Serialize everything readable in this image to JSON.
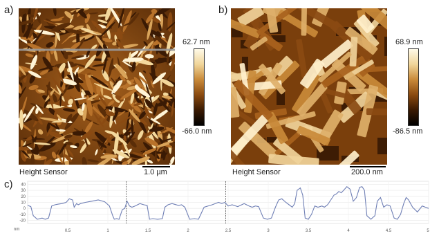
{
  "panels": {
    "a": {
      "letter": "a)",
      "caption": "Height Sensor",
      "scale": "1.0 µm",
      "colorbar_max": "62.7 nm",
      "colorbar_min": "-66.0 nm"
    },
    "b": {
      "letter": "b)",
      "caption": "Height Sensor",
      "scale": "200.0 nm",
      "colorbar_max": "68.9 nm",
      "colorbar_min": "-86.5 nm"
    },
    "c": {
      "letter": "c)",
      "y_unit": "nm"
    }
  },
  "colors": {
    "profile_line": "#6f7fb5",
    "scan_line": "#9a9a9a",
    "afm_dark": "#1a0a00",
    "afm_mid": "#9b5a17",
    "afm_light": "#fff6d8"
  },
  "chart_data": {
    "type": "line",
    "xlabel": "",
    "ylabel": "nm",
    "xlim": [
      0,
      5
    ],
    "ylim": [
      -25,
      45
    ],
    "x_ticks": [
      "0.5",
      "1",
      "1.5",
      "2",
      "2.5",
      "3",
      "3.5",
      "4",
      "4.5",
      "5"
    ],
    "y_ticks": [
      "40",
      "30",
      "20",
      "10",
      "0",
      "-10",
      "-20"
    ],
    "markers_x": [
      1.23,
      2.47
    ],
    "series": [
      {
        "x": [
          0,
          0.04,
          0.07,
          0.12,
          0.18,
          0.22,
          0.26,
          0.3,
          0.34,
          0.38,
          0.43,
          0.48,
          0.52,
          0.56,
          0.58,
          0.61,
          0.63,
          0.66,
          0.72,
          0.8,
          0.88,
          0.96,
          1.02,
          1.06,
          1.08,
          1.11,
          1.14,
          1.18,
          1.21,
          1.24,
          1.27,
          1.3,
          1.34,
          1.4,
          1.45,
          1.49,
          1.52,
          1.56,
          1.62,
          1.68,
          1.71,
          1.75,
          1.8,
          1.88,
          1.92,
          1.96,
          2.02,
          2.08,
          2.13,
          2.2,
          2.3,
          2.38,
          2.42,
          2.46,
          2.5,
          2.55,
          2.62,
          2.7,
          2.76,
          2.8,
          2.84,
          2.88,
          2.94,
          2.99,
          3.04,
          3.09,
          3.13,
          3.17,
          3.22,
          3.26,
          3.3,
          3.33,
          3.36,
          3.4,
          3.43,
          3.46,
          3.5,
          3.54,
          3.58,
          3.62,
          3.67,
          3.7,
          3.74,
          3.78,
          3.82,
          3.85,
          3.88,
          3.91,
          3.94,
          3.98,
          4.02,
          4.06,
          4.1,
          4.14,
          4.17,
          4.2,
          4.23,
          4.28,
          4.33,
          4.36,
          4.4,
          4.44,
          4.48,
          4.52,
          4.57,
          4.61,
          4.65,
          4.69,
          4.72,
          4.75,
          4.8,
          4.86,
          4.92,
          4.96,
          5.0
        ],
        "y": [
          5,
          3,
          -12,
          -18,
          -16,
          -18,
          -16,
          4,
          6,
          7,
          8,
          10,
          16,
          14,
          2,
          8,
          6,
          8,
          10,
          12,
          14,
          11,
          4,
          -12,
          -18,
          -17,
          -18,
          -2,
          0,
          12,
          4,
          2,
          4,
          8,
          6,
          5,
          -18,
          -17,
          -18,
          -17,
          2,
          6,
          8,
          5,
          6,
          2,
          -18,
          -17,
          -18,
          2,
          6,
          10,
          8,
          10,
          4,
          6,
          3,
          8,
          4,
          2,
          4,
          3,
          -16,
          -18,
          -16,
          2,
          14,
          16,
          10,
          6,
          2,
          8,
          30,
          34,
          22,
          -16,
          -18,
          -10,
          4,
          2,
          4,
          2,
          6,
          14,
          22,
          24,
          28,
          26,
          30,
          36,
          32,
          12,
          18,
          35,
          36,
          30,
          -12,
          -18,
          -12,
          12,
          18,
          2,
          6,
          4,
          -16,
          -18,
          -10,
          8,
          18,
          14,
          2,
          -6,
          4,
          2,
          0
        ]
      }
    ]
  }
}
